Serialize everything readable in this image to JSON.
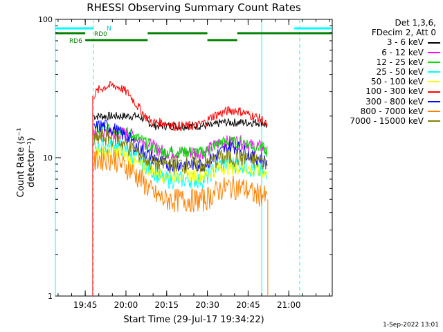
{
  "title": "RHESSI Observing Summary Count Rates",
  "ylabel": "Count Rate (s⁻¹ detector⁻¹)",
  "xlabel": "Start Time (29-Jul-17 19:34:22)",
  "timestamp": "1-Sep-2022 13:01",
  "legend": {
    "header_line1": "Det 1,3,6,",
    "header_line2": "FDecim 2, Att 0",
    "entries": [
      {
        "label": "3 - 6 keV",
        "color": "#000000"
      },
      {
        "label": "6 - 12 keV",
        "color": "#ff00ff"
      },
      {
        "label": "12 - 25 keV",
        "color": "#00e000"
      },
      {
        "label": "25 - 50 keV",
        "color": "#00ffff"
      },
      {
        "label": "50 - 100 keV",
        "color": "#ffff00"
      },
      {
        "label": "100 - 300 keV",
        "color": "#ff0000"
      },
      {
        "label": "300 - 800 keV",
        "color": "#0000ff"
      },
      {
        "label": "800 - 7000 keV",
        "color": "#ff8000"
      },
      {
        "label": "7000 - 15000 keV",
        "color": "#808000"
      }
    ]
  },
  "flag_labels": {
    "n": "N",
    "rd0": "RD0",
    "rd6": "RD6"
  },
  "chart_data": {
    "type": "line",
    "title": "RHESSI Observing Summary Count Rates",
    "xlabel": "Start Time (29-Jul-17 19:34:22)",
    "ylabel": "Count Rate (s⁻¹ detector⁻¹)",
    "y_scale": "log",
    "ylim": [
      1,
      100
    ],
    "xlim": [
      "19:34",
      "21:16"
    ],
    "x_ticks": [
      "19:45",
      "20:00",
      "20:15",
      "20:30",
      "20:45",
      "21:00"
    ],
    "y_ticks": [
      "1",
      "10",
      "100"
    ],
    "x": [
      "19:48",
      "19:50",
      "19:53",
      "19:56",
      "19:58",
      "20:01",
      "20:04",
      "20:07",
      "20:10",
      "20:14",
      "20:18",
      "20:22",
      "20:26",
      "20:29",
      "20:32",
      "20:35",
      "20:38",
      "20:41",
      "20:44",
      "20:47",
      "20:50",
      "20:52"
    ],
    "series": [
      {
        "name": "3 - 6 keV",
        "color": "#000000",
        "values": [
          20,
          20,
          20,
          20,
          20,
          20,
          20,
          19,
          17,
          17,
          17,
          17,
          17,
          17,
          17,
          18,
          18,
          18,
          18,
          18,
          18,
          17
        ]
      },
      {
        "name": "6 - 12 keV",
        "color": "#ff00ff",
        "values": [
          14,
          15,
          15,
          15,
          15,
          15,
          14,
          13,
          12,
          11,
          11,
          11,
          11,
          11,
          12,
          13,
          13,
          13,
          13,
          12,
          12,
          11
        ]
      },
      {
        "name": "12 - 25 keV",
        "color": "#00e000",
        "values": [
          15,
          16,
          16,
          16,
          16,
          15,
          14,
          13,
          12,
          11,
          11,
          11,
          11,
          11,
          12,
          13,
          13,
          13,
          13,
          12,
          12,
          11
        ]
      },
      {
        "name": "25 - 50 keV",
        "color": "#00ffff",
        "values": [
          12,
          12,
          12,
          12,
          12,
          11,
          10,
          9,
          8,
          7,
          7,
          7,
          7,
          7,
          8,
          9,
          9,
          9,
          9,
          8,
          8,
          7
        ]
      },
      {
        "name": "50 - 100 keV",
        "color": "#ffff00",
        "values": [
          11,
          11,
          11,
          11,
          11,
          10,
          9,
          8.5,
          8,
          7.5,
          7.5,
          7.5,
          7.5,
          7.5,
          8,
          8.5,
          8.5,
          8.5,
          8.5,
          8,
          8,
          7.5
        ]
      },
      {
        "name": "100 - 300 keV",
        "color": "#ff0000",
        "values": [
          28,
          31,
          33,
          33,
          32,
          29,
          24,
          20,
          18,
          18,
          17,
          17,
          17,
          18,
          20,
          21,
          22,
          22,
          21,
          20,
          19,
          17
        ]
      },
      {
        "name": "300 - 800 keV",
        "color": "#0000ff",
        "values": [
          16,
          17,
          17,
          16,
          15,
          14,
          12,
          11,
          10,
          9,
          9,
          9,
          9,
          9,
          10,
          11,
          12,
          12,
          11,
          10,
          10,
          9
        ]
      },
      {
        "name": "800 - 7000 keV",
        "color": "#ff8000",
        "values": [
          9,
          10,
          10,
          10,
          9,
          8.5,
          7.5,
          6.5,
          5.5,
          5,
          5,
          5,
          5,
          5,
          5.5,
          6,
          6.2,
          6.2,
          6,
          5.5,
          5.5,
          5
        ]
      },
      {
        "name": "7000 - 15000 keV",
        "color": "#808000",
        "values": [
          13,
          14,
          14,
          14,
          13,
          12,
          11,
          10,
          9,
          9,
          9,
          9,
          9,
          9,
          9.5,
          10,
          10,
          10,
          10,
          9.5,
          9.5,
          9
        ]
      }
    ],
    "flags": [
      {
        "label": "N",
        "color": "#00ffff",
        "intervals": [
          [
            "19:34",
            "19:48"
          ],
          [
            "21:02",
            "21:16"
          ]
        ]
      },
      {
        "label": "RD0",
        "color": "#008000",
        "intervals": [
          [
            "19:34",
            "19:45"
          ],
          [
            "20:08",
            "20:30"
          ],
          [
            "20:41",
            "21:16"
          ]
        ]
      },
      {
        "label": "RD6",
        "color": "#008000",
        "intervals": [
          [
            "19:45",
            "20:08"
          ],
          [
            "20:30",
            "20:41"
          ]
        ]
      }
    ],
    "vertical_lines": [
      {
        "time": "19:34",
        "style": "solid",
        "color": "#00ffff"
      },
      {
        "time": "19:48",
        "style": "dashed",
        "color": "#00ffff"
      },
      {
        "time": "20:50",
        "style": "solid",
        "color": "#00ffff"
      },
      {
        "time": "21:04",
        "style": "dashed",
        "color": "#00ffff"
      }
    ],
    "grid": false,
    "legend_position": "right"
  }
}
